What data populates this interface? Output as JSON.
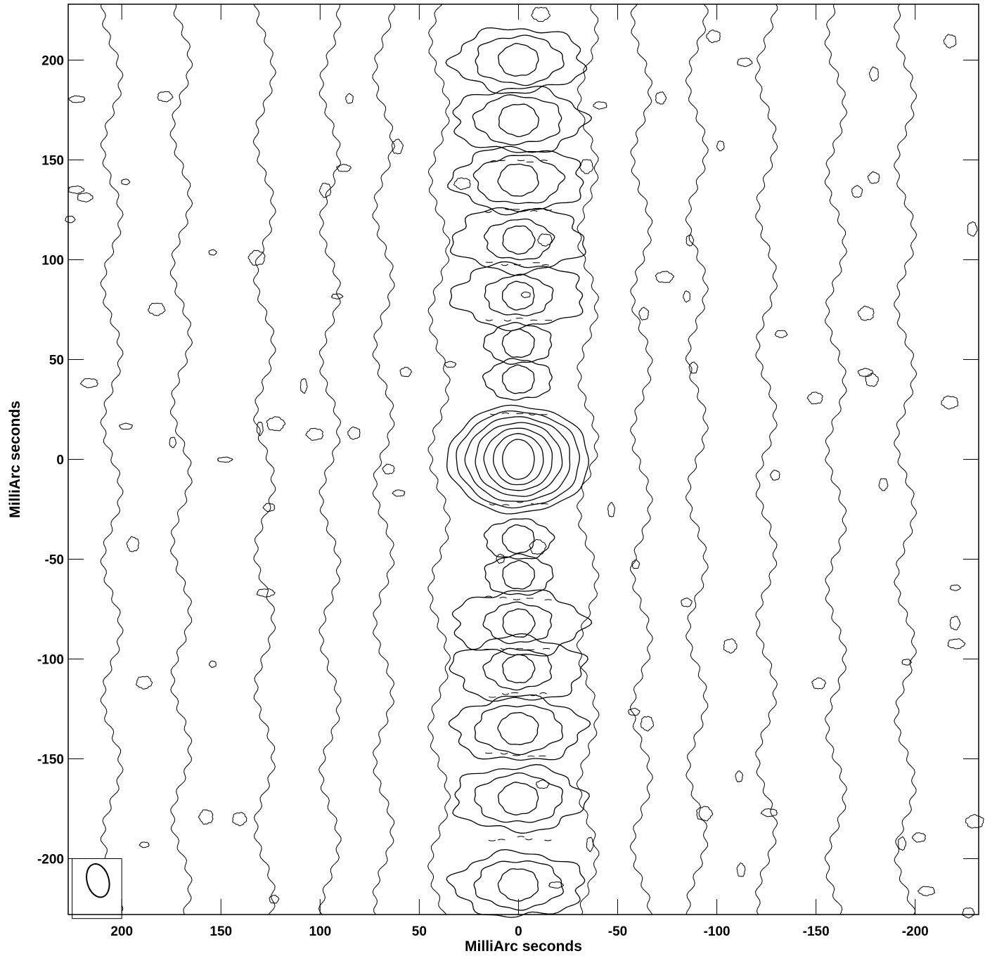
{
  "chart_data": {
    "type": "contour",
    "xlabel": "MilliArc seconds",
    "ylabel": "MilliArc seconds",
    "xlim": [
      227,
      -232
    ],
    "ylim": [
      -228,
      228
    ],
    "x_ticks": [
      200,
      150,
      100,
      50,
      0,
      -50,
      -100,
      -150,
      -200
    ],
    "y_ticks": [
      200,
      150,
      100,
      50,
      0,
      -50,
      -100,
      -150,
      -200
    ],
    "x_tick_labels": [
      "200",
      "150",
      "100",
      "50",
      "0",
      "-50",
      "-100",
      "-150",
      "-200"
    ],
    "y_tick_labels": [
      "200",
      "150",
      "100",
      "50",
      "0",
      "-50",
      "-100",
      "-150",
      "-200"
    ],
    "peak": {
      "x": 0,
      "y": 0
    },
    "central_component_levels": 7,
    "sidelobes_y": [
      200,
      170,
      140,
      110,
      82,
      58,
      40,
      -40,
      -58,
      -82,
      -105,
      -135,
      -170,
      -213
    ],
    "beam": {
      "x": 212,
      "y": -211,
      "major": 17,
      "minor": 11,
      "pa_deg": -15
    },
    "grid": false,
    "legend": "none"
  }
}
